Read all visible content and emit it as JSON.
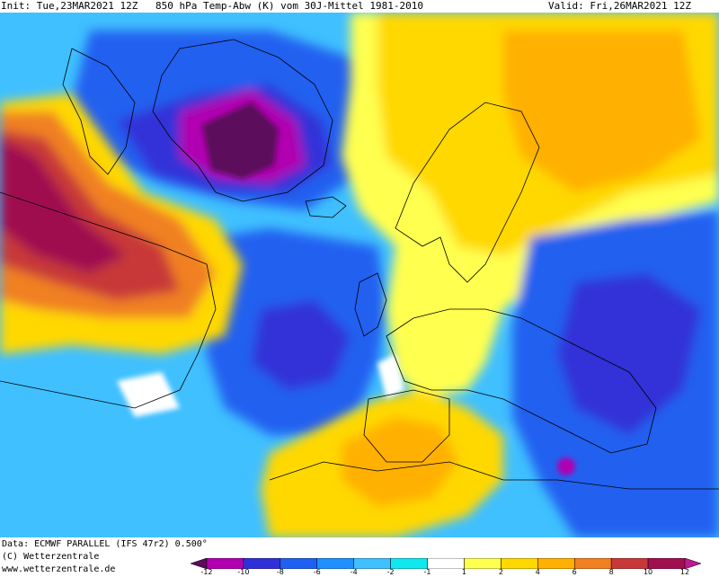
{
  "header": {
    "init": "Init: Tue,23MAR2021 12Z",
    "title": "850 hPa Temp-Abw (K) vom 30J-Mittel 1981-2010",
    "valid": "Valid: Fri,26MAR2021 12Z"
  },
  "footer": {
    "data_line": "Data: ECMWF PARALLEL (IFS 47r2) 0.500°",
    "copyright": "(C) Wetterzentrale",
    "url": "www.wetterzentrale.de"
  },
  "colorbar": {
    "ticks": [
      "-12",
      "-10",
      "-8",
      "-6",
      "-4",
      "-2",
      "-1",
      "1",
      "2",
      "4",
      "6",
      "8",
      "10",
      "12"
    ],
    "colors": [
      "#5c0a5c",
      "#b000b0",
      "#3030d8",
      "#2060f0",
      "#2090ff",
      "#40c0ff",
      "#10e8f0",
      "#ffffff",
      "#ffff50",
      "#ffd800",
      "#ffb000",
      "#f08020",
      "#c83838",
      "#a01050",
      "#c01890"
    ]
  },
  "map_colors": {
    "ocean_base": "#40c0ff",
    "strong_cold": "#2060f0",
    "very_cold": "#3030d8",
    "extreme_cold": "#b000b0",
    "core_cold": "#5c0a5c",
    "mild_warm": "#ffff50",
    "warm": "#ffd800",
    "warmer": "#ffb000",
    "hot": "#f08020",
    "very_hot": "#c83838",
    "extreme_hot": "#a01050",
    "near_zero": "#ffffff"
  }
}
